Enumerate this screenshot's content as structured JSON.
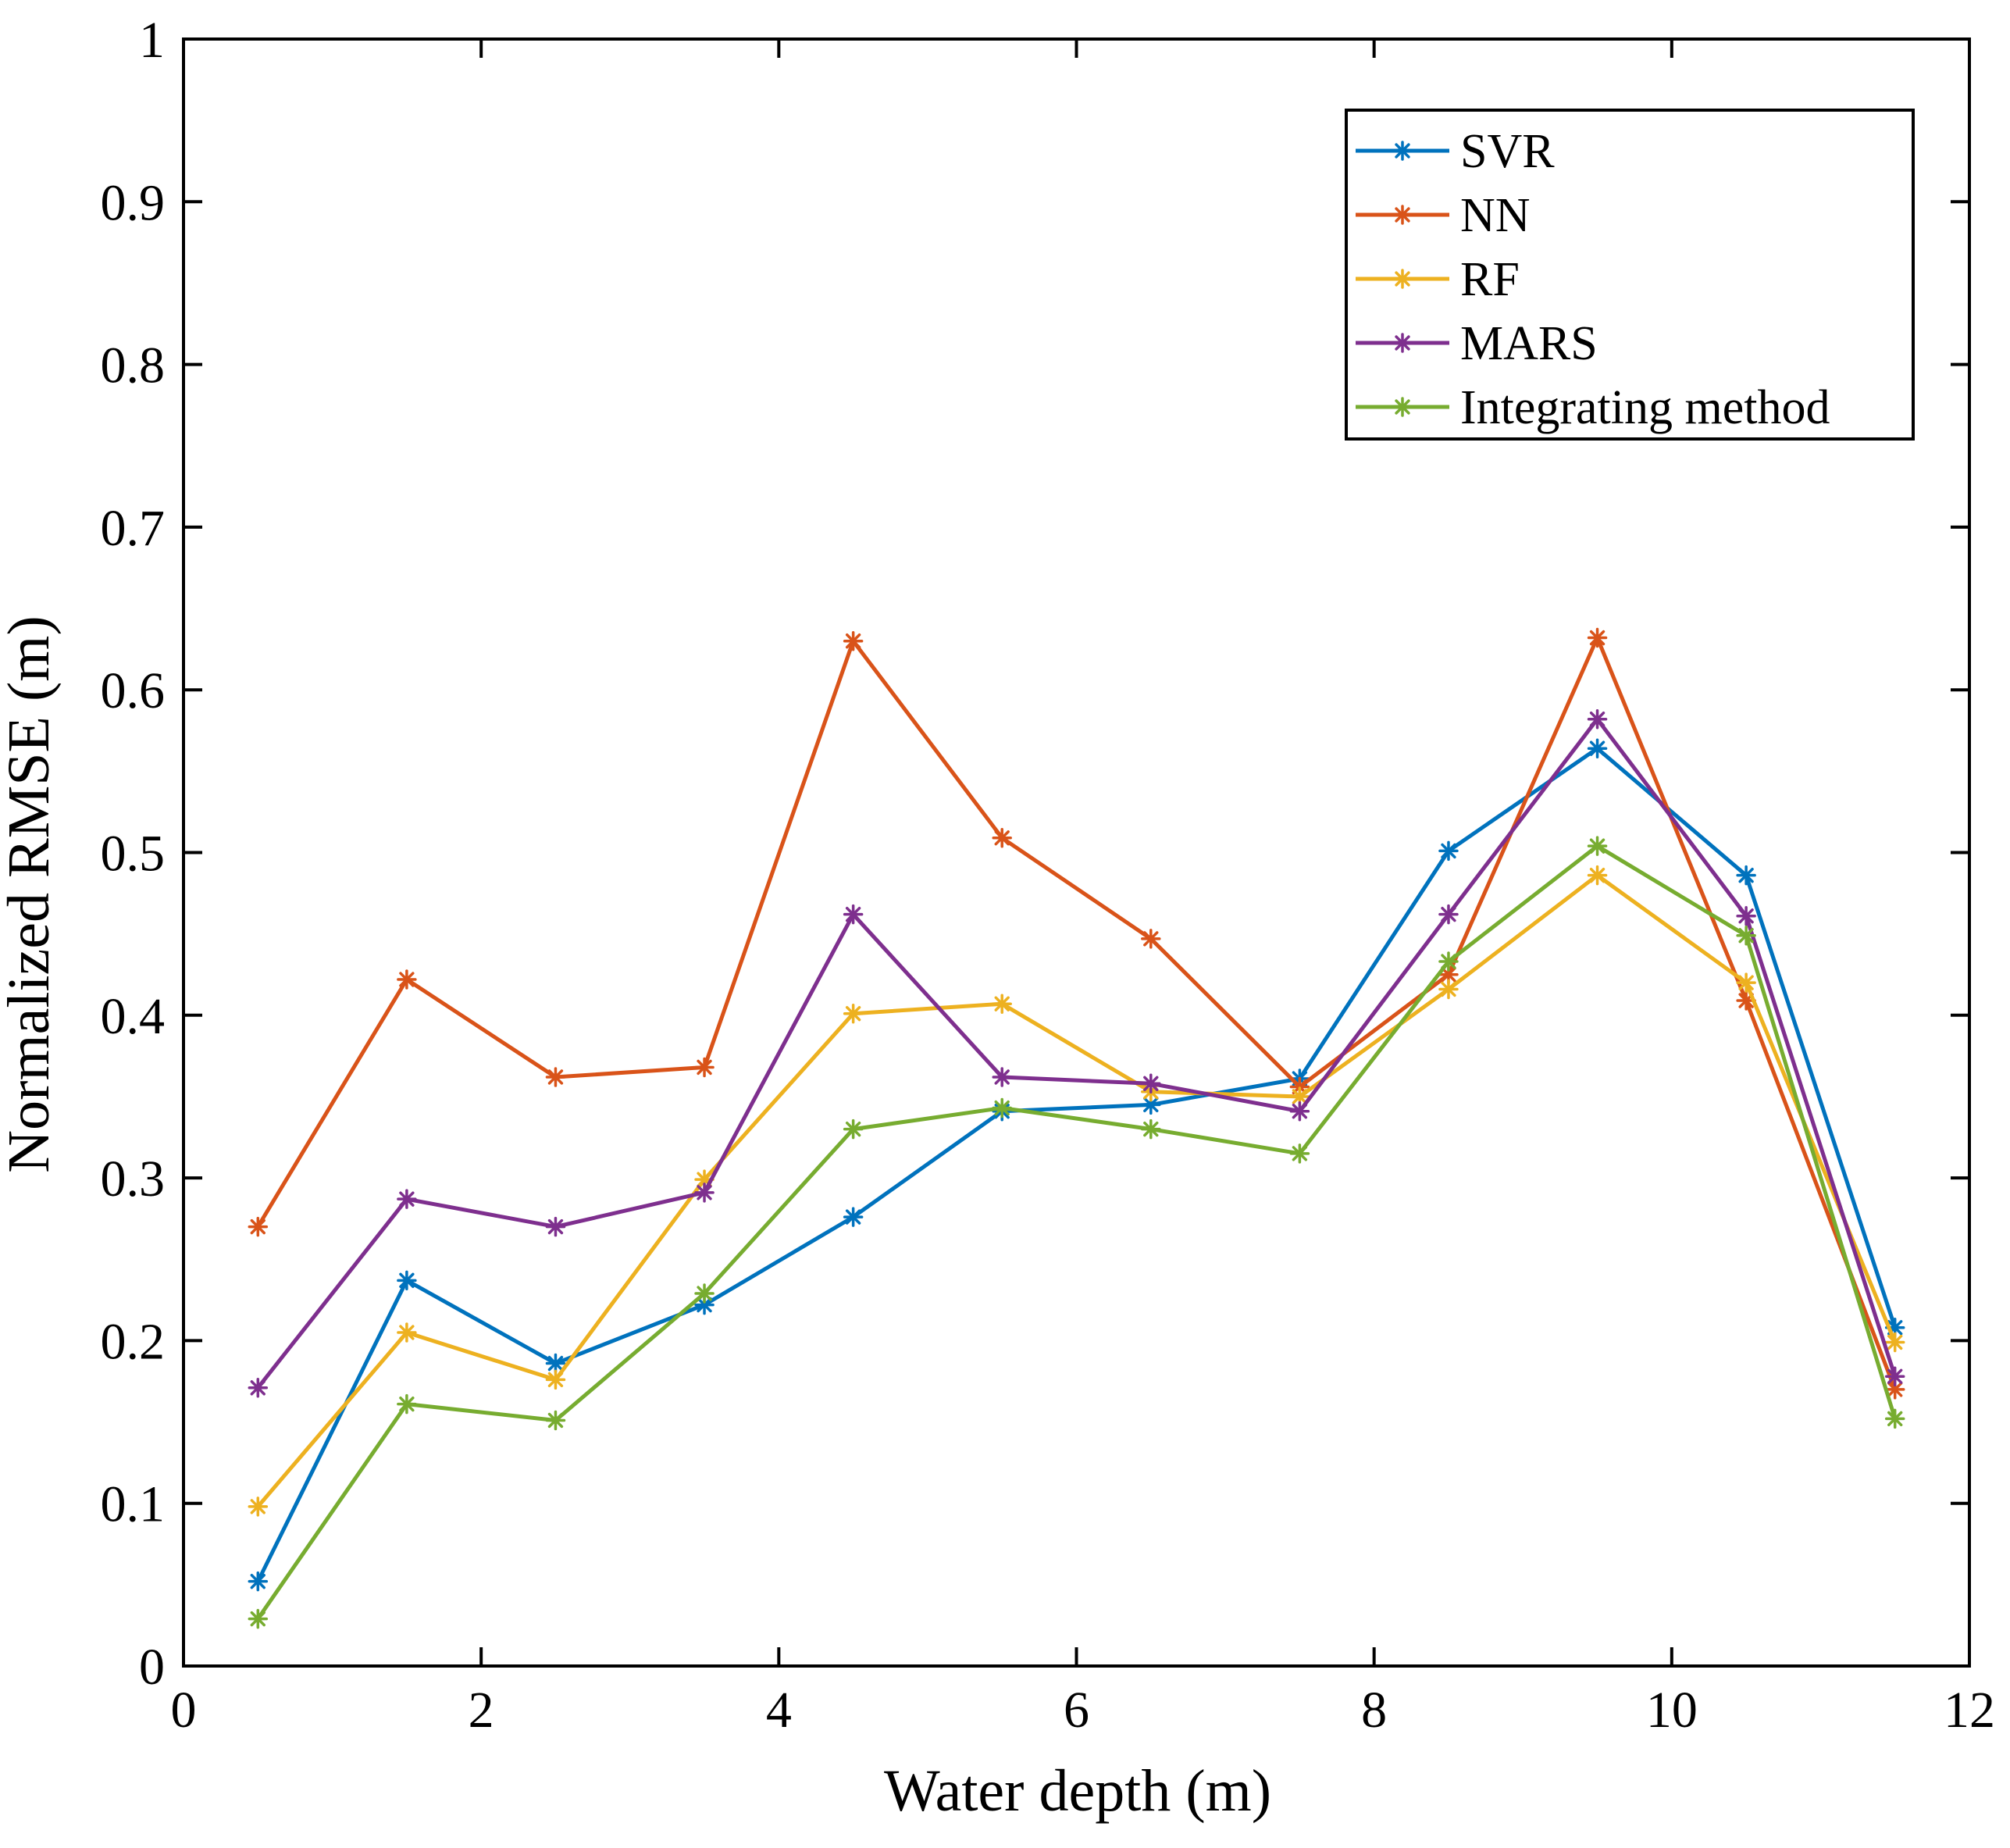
{
  "chart_data": {
    "type": "line",
    "title": "",
    "xlabel": "Water depth (m)",
    "ylabel": "Normalized RMSE (m)",
    "xlim": [
      0,
      12
    ],
    "ylim": [
      0,
      1
    ],
    "xticks": [
      0,
      2,
      4,
      6,
      8,
      10,
      12
    ],
    "xtick_labels": [
      "0",
      "2",
      "4",
      "6",
      "8",
      "10",
      "12"
    ],
    "yticks": [
      0,
      0.1,
      0.2,
      0.3,
      0.4,
      0.5,
      0.6,
      0.7,
      0.8,
      0.9,
      1
    ],
    "ytick_labels": [
      "0",
      "0.1",
      "0.2",
      "0.3",
      "0.4",
      "0.5",
      "0.6",
      "0.7",
      "0.8",
      "0.9",
      "1"
    ],
    "grid": false,
    "legend_position": "top-right",
    "marker": "asterisk",
    "x": [
      0.5,
      1.5,
      2.5,
      3.5,
      4.5,
      5.5,
      6.5,
      7.5,
      8.5,
      9.5,
      10.5,
      11.5
    ],
    "series": [
      {
        "name": "SVR",
        "color": "#0072BD",
        "values": [
          0.052,
          0.237,
          0.186,
          0.222,
          0.276,
          0.341,
          0.345,
          0.361,
          0.501,
          0.564,
          0.486,
          0.208
        ]
      },
      {
        "name": "NN",
        "color": "#D95319",
        "values": [
          0.27,
          0.422,
          0.362,
          0.368,
          0.63,
          0.509,
          0.447,
          0.356,
          0.425,
          0.632,
          0.409,
          0.17
        ]
      },
      {
        "name": "RF",
        "color": "#EDB120",
        "values": [
          0.098,
          0.205,
          0.176,
          0.299,
          0.401,
          0.407,
          0.353,
          0.35,
          0.416,
          0.486,
          0.42,
          0.199
        ]
      },
      {
        "name": "MARS",
        "color": "#7E2F8E",
        "values": [
          0.171,
          0.287,
          0.27,
          0.291,
          0.462,
          0.362,
          0.358,
          0.341,
          0.462,
          0.582,
          0.461,
          0.178
        ]
      },
      {
        "name": "Integrating method",
        "color": "#77AC30",
        "values": [
          0.029,
          0.161,
          0.151,
          0.229,
          0.33,
          0.343,
          0.33,
          0.315,
          0.433,
          0.504,
          0.449,
          0.152
        ]
      }
    ]
  }
}
